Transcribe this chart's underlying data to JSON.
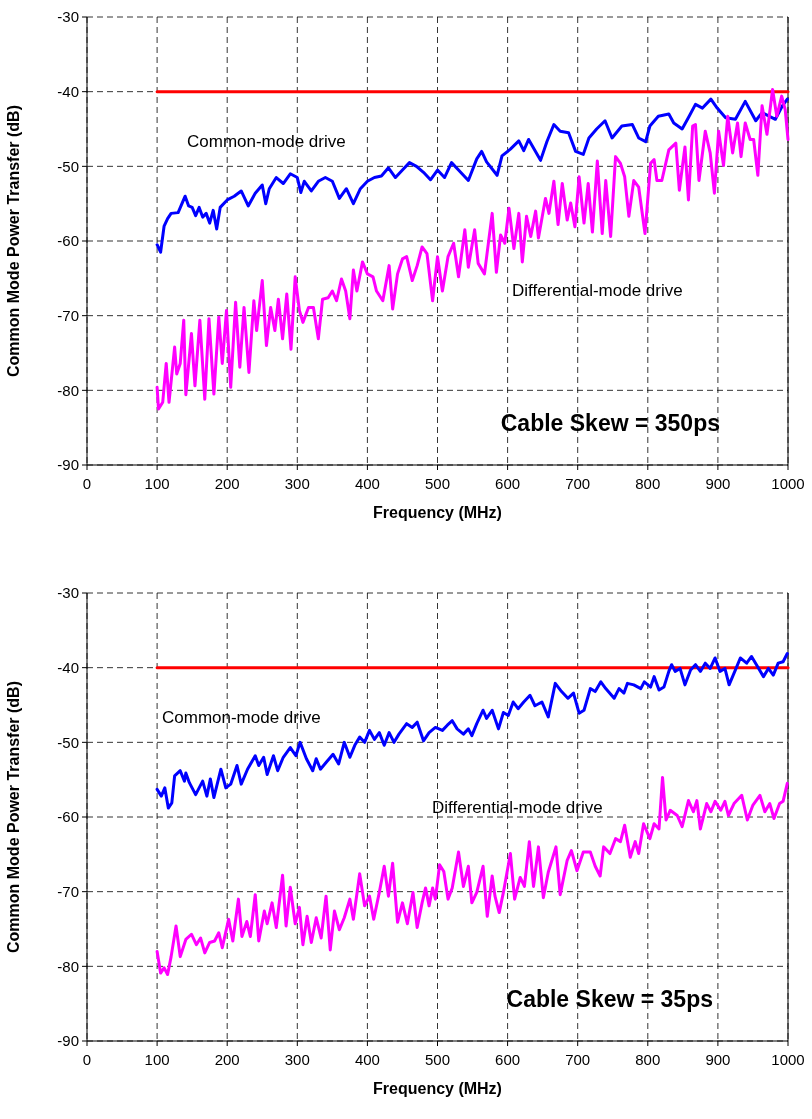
{
  "chart_data": [
    {
      "type": "line",
      "xlabel": "Frequency (MHz)",
      "ylabel": "Common Mode Power Transfer (dB)",
      "xlim": [
        0,
        1000
      ],
      "ylim": [
        -90,
        -30
      ],
      "xticks": [
        0,
        100,
        200,
        300,
        400,
        500,
        600,
        700,
        800,
        900,
        1000
      ],
      "yticks": [
        -90,
        -80,
        -70,
        -60,
        -50,
        -40,
        -30
      ],
      "grid": true,
      "marker": "none",
      "line_style": "solid",
      "annotations": [
        "Common-mode drive",
        "Differential-mode drive",
        "Cable Skew = 350ps"
      ],
      "series": [
        {
          "color": "#ff0000",
          "x": [
            100,
            1000
          ],
          "values": [
            -40,
            -40
          ]
        },
        {
          "color": "#0000ff",
          "x": [
            100,
            105,
            110,
            115,
            120,
            130,
            140,
            145,
            150,
            155,
            160,
            165,
            170,
            175,
            180,
            185,
            190,
            200,
            210,
            220,
            230,
            240,
            250,
            255,
            260,
            270,
            280,
            290,
            300,
            305,
            310,
            320,
            330,
            340,
            350,
            360,
            370,
            380,
            390,
            400,
            410,
            420,
            430,
            440,
            450,
            460,
            470,
            480,
            490,
            500,
            510,
            520,
            530,
            544,
            556,
            563,
            570,
            585,
            592,
            604,
            616,
            623,
            630,
            647,
            656,
            666,
            675,
            687,
            697,
            708,
            716,
            727,
            739,
            749,
            763,
            778,
            787,
            797,
            803,
            815,
            830,
            837,
            849,
            859,
            868,
            878,
            890,
            899,
            911,
            925,
            939,
            954,
            963,
            982,
            992,
            999
          ],
          "values": [
            -60.5,
            -61.5,
            -58,
            -57,
            -56.3,
            -56.2,
            -54,
            -55.3,
            -55.5,
            -56.6,
            -55.5,
            -56.8,
            -56.3,
            -57.6,
            -55.9,
            -58.4,
            -55.5,
            -54.5,
            -54,
            -53.3,
            -55.3,
            -53.6,
            -52.5,
            -55,
            -53,
            -51.5,
            -52.3,
            -51,
            -51.5,
            -53.5,
            -52,
            -53.3,
            -52,
            -51.5,
            -52,
            -54.3,
            -53,
            -55,
            -53,
            -52,
            -51.5,
            -51.3,
            -50.2,
            -51.5,
            -50.5,
            -49.5,
            -50,
            -50.8,
            -51.8,
            -50.5,
            -51.5,
            -49.5,
            -50.5,
            -51.9,
            -49,
            -48,
            -49.4,
            -51.2,
            -48.6,
            -47.7,
            -46.6,
            -47.9,
            -46.4,
            -49.2,
            -46.7,
            -44.4,
            -45.3,
            -45.5,
            -48,
            -48.4,
            -46.2,
            -45,
            -43.9,
            -46.2,
            -44.6,
            -44.4,
            -46.2,
            -46.7,
            -44.6,
            -43.3,
            -43,
            -44.2,
            -45,
            -43.3,
            -41.7,
            -42.2,
            -41,
            -42.2,
            -43.5,
            -43.7,
            -41.3,
            -43.9,
            -42.8,
            -43.7,
            -41.9,
            -41
          ]
        },
        {
          "color": "#ff00ff",
          "x": [
            100,
            102,
            108,
            113,
            117,
            125,
            128,
            133,
            138,
            141,
            149,
            154,
            161,
            168,
            174,
            181,
            188,
            193,
            199,
            205,
            212,
            218,
            224,
            231,
            238,
            242,
            250,
            256,
            262,
            268,
            273,
            279,
            285,
            291,
            297,
            303,
            308,
            316,
            323,
            330,
            336,
            344,
            350,
            356,
            363,
            369,
            375,
            380,
            385,
            393,
            400,
            408,
            413,
            422,
            431,
            436,
            443,
            450,
            456,
            464,
            471,
            478,
            485,
            493,
            500,
            507,
            515,
            523,
            530,
            539,
            544,
            553,
            558,
            567,
            578,
            584,
            590,
            596,
            602,
            609,
            616,
            621,
            627,
            633,
            640,
            644,
            654,
            659,
            666,
            672,
            678,
            685,
            690,
            696,
            702,
            709,
            715,
            721,
            728,
            735,
            740,
            747,
            754,
            761,
            767,
            773,
            780,
            787,
            796,
            804,
            809,
            813,
            820,
            830,
            840,
            845,
            853,
            858,
            864,
            868,
            873,
            882,
            889,
            895,
            901,
            908,
            914,
            921,
            928,
            933,
            939,
            946,
            951,
            957,
            963,
            970,
            978,
            984,
            991,
            996,
            1000
          ],
          "values": [
            -79.6,
            -82.5,
            -81.6,
            -76.4,
            -81.6,
            -74.2,
            -77.8,
            -76.4,
            -70.6,
            -80.6,
            -72.4,
            -79.4,
            -70.6,
            -81.2,
            -70.4,
            -80.5,
            -70.2,
            -76.4,
            -69.3,
            -79.6,
            -68.2,
            -76.9,
            -68.9,
            -77.6,
            -68,
            -72,
            -65.3,
            -74,
            -68.9,
            -72,
            -67.8,
            -73.1,
            -67.1,
            -74.5,
            -64.8,
            -69.3,
            -70.9,
            -68.9,
            -68.9,
            -73.1,
            -67.8,
            -67.6,
            -66.7,
            -68,
            -65.1,
            -66.7,
            -70.4,
            -63.9,
            -66.7,
            -62.8,
            -64.4,
            -64.8,
            -66.7,
            -68,
            -63.3,
            -69.1,
            -64.4,
            -62.4,
            -62.1,
            -65.3,
            -63.3,
            -60.8,
            -61.7,
            -68,
            -62.1,
            -66.7,
            -62.1,
            -60.3,
            -64.8,
            -58.5,
            -63.5,
            -58.5,
            -63,
            -64.4,
            -56.3,
            -64.2,
            -59.2,
            -60.3,
            -55.6,
            -61,
            -56.3,
            -62.8,
            -56.7,
            -59.4,
            -56,
            -59.6,
            -54.3,
            -56.3,
            -52,
            -57.8,
            -52.3,
            -57.2,
            -54.9,
            -58.1,
            -51.4,
            -57.6,
            -52.3,
            -58.8,
            -49.3,
            -59,
            -51.9,
            -59.4,
            -48.7,
            -49.6,
            -51.4,
            -56.7,
            -51.9,
            -52.8,
            -59,
            -49.6,
            -49.1,
            -51.9,
            -51.9,
            -47.8,
            -46.9,
            -53.2,
            -47.4,
            -54.5,
            -44.6,
            -44.4,
            -51.9,
            -45.3,
            -48.2,
            -53.6,
            -45.3,
            -49.9,
            -43.3,
            -48.2,
            -44.2,
            -48.7,
            -44.2,
            -46.4,
            -46.4,
            -51.2,
            -41.9,
            -45.7,
            -39.7,
            -43.3,
            -40.6,
            -42.4,
            -46.4
          ]
        }
      ]
    },
    {
      "type": "line",
      "xlabel": "Frequency (MHz)",
      "ylabel": "Common Mode Power Transfer (dB)",
      "xlim": [
        0,
        1000
      ],
      "ylim": [
        -90,
        -30
      ],
      "xticks": [
        0,
        100,
        200,
        300,
        400,
        500,
        600,
        700,
        800,
        900,
        1000
      ],
      "yticks": [
        -90,
        -80,
        -70,
        -60,
        -50,
        -40,
        -30
      ],
      "grid": true,
      "marker": "none",
      "line_style": "solid",
      "annotations": [
        "Common-mode drive",
        "Differential-mode drive",
        "Cable Skew = 35ps"
      ],
      "series": [
        {
          "color": "#ff0000",
          "x": [
            100,
            1000
          ],
          "values": [
            -40,
            -40
          ]
        },
        {
          "color": "#0000ff",
          "x": [
            100,
            106,
            111,
            116,
            121,
            125,
            133,
            139,
            141,
            146,
            155,
            165,
            171,
            176,
            181,
            191,
            198,
            205,
            214,
            220,
            229,
            240,
            245,
            252,
            257,
            266,
            272,
            280,
            290,
            298,
            304,
            313,
            322,
            327,
            333,
            341,
            351,
            359,
            367,
            375,
            382,
            389,
            396,
            403,
            410,
            417,
            424,
            431,
            438,
            445,
            456,
            464,
            471,
            480,
            488,
            497,
            507,
            514,
            521,
            528,
            537,
            544,
            549,
            556,
            565,
            570,
            578,
            587,
            594,
            601,
            608,
            615,
            623,
            632,
            639,
            649,
            658,
            668,
            677,
            686,
            694,
            702,
            709,
            718,
            725,
            733,
            740,
            752,
            759,
            766,
            771,
            780,
            790,
            795,
            804,
            809,
            816,
            823,
            830,
            834,
            839,
            846,
            853,
            861,
            868,
            875,
            882,
            889,
            896,
            903,
            910,
            916,
            925,
            932,
            941,
            948,
            955,
            965,
            972,
            979,
            986,
            993,
            999
          ],
          "values": [
            -56.3,
            -57.2,
            -56.1,
            -58.8,
            -58.1,
            -54.5,
            -53.8,
            -55.2,
            -54.1,
            -55.4,
            -57,
            -55.2,
            -57.2,
            -54.9,
            -57.4,
            -53.6,
            -56.1,
            -55.6,
            -53.1,
            -55.6,
            -53.6,
            -51.8,
            -53.1,
            -52,
            -54.3,
            -51.8,
            -53.8,
            -52,
            -50.7,
            -51.8,
            -50,
            -52.2,
            -53.8,
            -52.2,
            -53.6,
            -52.7,
            -51.6,
            -52.9,
            -50,
            -52,
            -50.4,
            -49.3,
            -50,
            -48.4,
            -49.6,
            -48.7,
            -50.4,
            -48.7,
            -50,
            -48.9,
            -47.5,
            -48,
            -47.3,
            -49.8,
            -48.7,
            -48,
            -48.4,
            -47.7,
            -47.1,
            -48.2,
            -48.9,
            -48.2,
            -49.1,
            -47.5,
            -45.7,
            -46.8,
            -45.7,
            -48.2,
            -46,
            -46.4,
            -44.6,
            -45.5,
            -44.6,
            -43.7,
            -45.1,
            -44.6,
            -46.6,
            -42.1,
            -43.2,
            -44.1,
            -43.4,
            -46.1,
            -45.7,
            -42.8,
            -43.2,
            -41.9,
            -42.8,
            -44.1,
            -42.8,
            -43.4,
            -42.1,
            -42.3,
            -42.8,
            -41.9,
            -42.6,
            -41.2,
            -43,
            -42.6,
            -40.5,
            -39.6,
            -40.5,
            -40.1,
            -42.3,
            -40.3,
            -39.6,
            -40.5,
            -39.4,
            -40.1,
            -38.7,
            -40.5,
            -40.1,
            -42.3,
            -40.3,
            -38.7,
            -39.4,
            -38.5,
            -39.6,
            -41.2,
            -40.1,
            -41,
            -39.4,
            -39.2,
            -38.1
          ]
        },
        {
          "color": "#ff00ff",
          "x": [
            100,
            105,
            110,
            115,
            120,
            127,
            133,
            141,
            149,
            156,
            162,
            168,
            175,
            182,
            188,
            193,
            202,
            208,
            216,
            221,
            228,
            233,
            240,
            245,
            253,
            257,
            264,
            270,
            279,
            284,
            290,
            297,
            303,
            308,
            314,
            320,
            327,
            334,
            341,
            347,
            353,
            360,
            367,
            375,
            380,
            389,
            396,
            403,
            409,
            417,
            424,
            430,
            436,
            443,
            450,
            457,
            465,
            471,
            478,
            483,
            488,
            493,
            497,
            503,
            509,
            515,
            521,
            530,
            537,
            544,
            549,
            556,
            565,
            571,
            578,
            582,
            588,
            594,
            604,
            610,
            618,
            624,
            631,
            637,
            644,
            651,
            658,
            669,
            675,
            685,
            691,
            699,
            708,
            718,
            725,
            732,
            737,
            746,
            754,
            761,
            767,
            775,
            782,
            787,
            794,
            803,
            809,
            816,
            821,
            826,
            832,
            842,
            849,
            858,
            865,
            870,
            875,
            884,
            890,
            896,
            904,
            910,
            915,
            923,
            934,
            942,
            950,
            960,
            967,
            974,
            980,
            988,
            993,
            999
          ],
          "values": [
            -78,
            -80.9,
            -80.2,
            -81.1,
            -78.7,
            -74.6,
            -78.7,
            -76.4,
            -75.7,
            -77.1,
            -76.2,
            -78.2,
            -76.8,
            -76.6,
            -75.5,
            -77.5,
            -73.7,
            -76.6,
            -71,
            -76,
            -74,
            -76,
            -70.4,
            -76.6,
            -72.6,
            -74.3,
            -71.5,
            -74.8,
            -67.8,
            -74.6,
            -69.4,
            -74.3,
            -72.1,
            -77.1,
            -73.3,
            -76.8,
            -73.5,
            -76.2,
            -70.6,
            -77.8,
            -72.6,
            -75.1,
            -73.5,
            -71,
            -73.7,
            -67.6,
            -71.9,
            -70.6,
            -73.7,
            -70.1,
            -66.6,
            -70.6,
            -66.2,
            -74.1,
            -71.5,
            -74.3,
            -70.1,
            -74.8,
            -71.5,
            -69.5,
            -71.9,
            -69.5,
            -71,
            -66.4,
            -67.3,
            -71,
            -69.5,
            -64.7,
            -69.3,
            -66.6,
            -71.5,
            -70.1,
            -66.6,
            -73.3,
            -67.9,
            -70.6,
            -72.8,
            -70.1,
            -64.9,
            -71,
            -68.1,
            -69.3,
            -63.3,
            -69.3,
            -64,
            -70.8,
            -67.4,
            -64,
            -70.4,
            -65.8,
            -64.5,
            -67.2,
            -64.7,
            -64.7,
            -66.6,
            -67.9,
            -64,
            -64.9,
            -62.9,
            -63.3,
            -61.1,
            -65.4,
            -63.3,
            -64.9,
            -60.9,
            -62.9,
            -60.9,
            -61.6,
            -54.7,
            -60.4,
            -59.1,
            -59.8,
            -61.3,
            -57.8,
            -59.3,
            -57.8,
            -61.6,
            -58.2,
            -59.3,
            -57.9,
            -59.1,
            -57.9,
            -59.8,
            -58.2,
            -57.1,
            -60.4,
            -58.4,
            -57.1,
            -59.3,
            -58.2,
            -60.2,
            -58.2,
            -57.9,
            -55.5
          ]
        }
      ]
    }
  ]
}
